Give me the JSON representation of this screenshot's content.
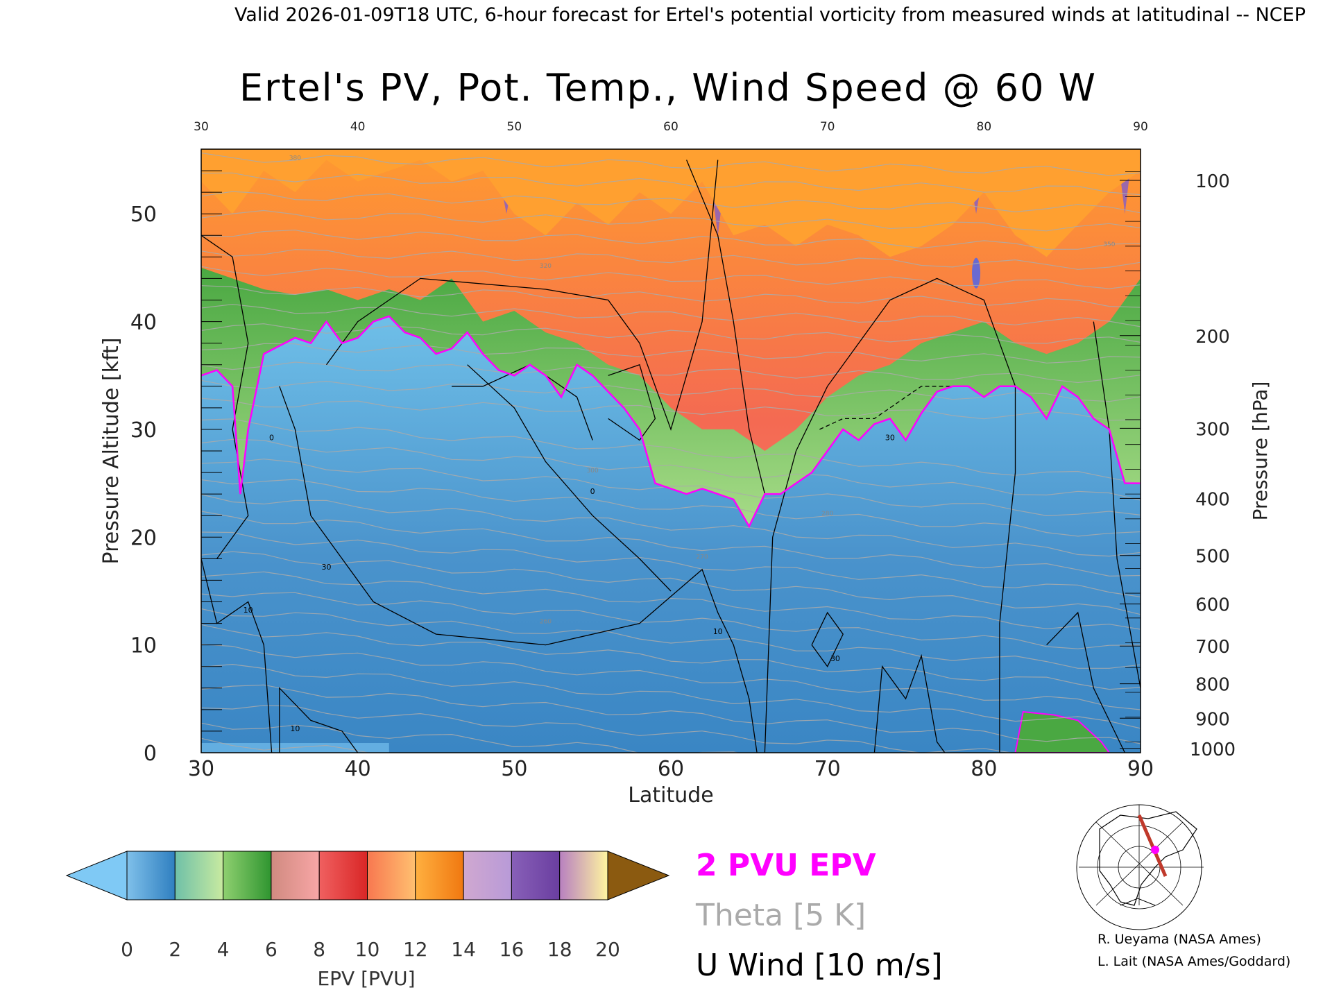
{
  "header": {
    "valid_line": "Valid 2026-01-09T18 UTC, 6-hour forecast for Ertel's potential vorticity from measured winds at latitudinal -- NCEP"
  },
  "chart_data": {
    "type": "heatmap",
    "title": "Ertel's PV, Pot. Temp., Wind Speed @ 60 W",
    "xlabel": "Latitude",
    "ylabel": "Pressure Altitude [kft]",
    "y2label": "Pressure [hPa]",
    "xlim": [
      30,
      90
    ],
    "ylim": [
      0,
      56
    ],
    "x_ticks": [
      30,
      40,
      50,
      60,
      70,
      80,
      90
    ],
    "y_ticks": [
      0,
      10,
      20,
      30,
      40,
      50
    ],
    "pressure_ticks": [
      {
        "label": "100",
        "kft": 53.1
      },
      {
        "label": "200",
        "kft": 38.7
      },
      {
        "label": "300",
        "kft": 30.1
      },
      {
        "label": "400",
        "kft": 23.6
      },
      {
        "label": "500",
        "kft": 18.3
      },
      {
        "label": "600",
        "kft": 13.8
      },
      {
        "label": "700",
        "kft": 9.9
      },
      {
        "label": "800",
        "kft": 6.4
      },
      {
        "label": "900",
        "kft": 3.2
      },
      {
        "label": "1000",
        "kft": 0.4
      }
    ],
    "colorbar": {
      "label": "EPV [PVU]",
      "ticks": [
        0,
        2,
        4,
        6,
        8,
        10,
        12,
        14,
        16,
        18,
        20
      ],
      "under_color": "#7fc9f5",
      "over_color": "#8b5a10",
      "bands": [
        {
          "from": 0,
          "to": 2,
          "colors": [
            "#7fc0ea",
            "#2f7fc0"
          ]
        },
        {
          "from": 2,
          "to": 4,
          "colors": [
            "#6fc0a8",
            "#c8eaa0"
          ]
        },
        {
          "from": 4,
          "to": 6,
          "colors": [
            "#8fd070",
            "#2f9530"
          ]
        },
        {
          "from": 6,
          "to": 8,
          "colors": [
            "#d08a80",
            "#f8a6a6"
          ]
        },
        {
          "from": 8,
          "to": 10,
          "colors": [
            "#f06060",
            "#d92626"
          ]
        },
        {
          "from": 10,
          "to": 12,
          "colors": [
            "#f87850",
            "#ffc070"
          ]
        },
        {
          "from": 12,
          "to": 14,
          "colors": [
            "#ffb040",
            "#f07810"
          ]
        },
        {
          "from": 14,
          "to": 16,
          "colors": [
            "#d0a8d0",
            "#b89ad8"
          ]
        },
        {
          "from": 16,
          "to": 18,
          "colors": [
            "#8860b8",
            "#6a3ea0"
          ]
        },
        {
          "from": 18,
          "to": 20,
          "colors": [
            "#b880c0",
            "#fff5a0"
          ]
        }
      ]
    },
    "contour_labels": {
      "wind": [
        "10",
        "30",
        "0"
      ],
      "theta": [
        "260",
        "270",
        "280",
        "300",
        "320",
        "350",
        "380"
      ]
    },
    "legend": {
      "epv_label": "2 PVU EPV",
      "epv_color": "#ff00ff",
      "theta_label": "Theta [5 K]",
      "theta_color": "#aaaaaa",
      "wind_label": "U Wind [10 m/s]",
      "wind_color": "#000000"
    },
    "tropopause_kft": [
      {
        "lat": 30,
        "kft": 35
      },
      {
        "lat": 31,
        "kft": 35.5
      },
      {
        "lat": 32,
        "kft": 34
      },
      {
        "lat": 32.5,
        "kft": 24
      },
      {
        "lat": 33,
        "kft": 30
      },
      {
        "lat": 34,
        "kft": 37
      },
      {
        "lat": 36,
        "kft": 38.5
      },
      {
        "lat": 37,
        "kft": 38
      },
      {
        "lat": 38,
        "kft": 40
      },
      {
        "lat": 39,
        "kft": 38
      },
      {
        "lat": 40,
        "kft": 38.5
      },
      {
        "lat": 41,
        "kft": 40
      },
      {
        "lat": 42,
        "kft": 40.5
      },
      {
        "lat": 43,
        "kft": 39
      },
      {
        "lat": 44,
        "kft": 38.5
      },
      {
        "lat": 45,
        "kft": 37
      },
      {
        "lat": 46,
        "kft": 37.5
      },
      {
        "lat": 47,
        "kft": 39
      },
      {
        "lat": 48,
        "kft": 37
      },
      {
        "lat": 49,
        "kft": 35.5
      },
      {
        "lat": 50,
        "kft": 35
      },
      {
        "lat": 51,
        "kft": 36
      },
      {
        "lat": 52,
        "kft": 35
      },
      {
        "lat": 53,
        "kft": 33
      },
      {
        "lat": 54,
        "kft": 36
      },
      {
        "lat": 55,
        "kft": 35
      },
      {
        "lat": 56,
        "kft": 33.5
      },
      {
        "lat": 57,
        "kft": 32
      },
      {
        "lat": 58,
        "kft": 30
      },
      {
        "lat": 59,
        "kft": 25
      },
      {
        "lat": 60,
        "kft": 24.5
      },
      {
        "lat": 61,
        "kft": 24
      },
      {
        "lat": 62,
        "kft": 24.5
      },
      {
        "lat": 63,
        "kft": 24
      },
      {
        "lat": 64,
        "kft": 23.5
      },
      {
        "lat": 65,
        "kft": 21
      },
      {
        "lat": 66,
        "kft": 24
      },
      {
        "lat": 67,
        "kft": 24
      },
      {
        "lat": 68,
        "kft": 25
      },
      {
        "lat": 69,
        "kft": 26
      },
      {
        "lat": 70,
        "kft": 28
      },
      {
        "lat": 71,
        "kft": 30
      },
      {
        "lat": 72,
        "kft": 29
      },
      {
        "lat": 73,
        "kft": 30.5
      },
      {
        "lat": 74,
        "kft": 31
      },
      {
        "lat": 75,
        "kft": 29
      },
      {
        "lat": 76,
        "kft": 31.5
      },
      {
        "lat": 77,
        "kft": 33.5
      },
      {
        "lat": 78,
        "kft": 34
      },
      {
        "lat": 79,
        "kft": 34
      },
      {
        "lat": 80,
        "kft": 33
      },
      {
        "lat": 81,
        "kft": 34
      },
      {
        "lat": 82,
        "kft": 34
      },
      {
        "lat": 83,
        "kft": 33
      },
      {
        "lat": 84,
        "kft": 31
      },
      {
        "lat": 85,
        "kft": 34
      },
      {
        "lat": 86,
        "kft": 33
      },
      {
        "lat": 87,
        "kft": 31
      },
      {
        "lat": 88,
        "kft": 30
      },
      {
        "lat": 89,
        "kft": 25
      },
      {
        "lat": 90,
        "kft": 25
      }
    ],
    "green_top_kft": [
      {
        "lat": 30,
        "kft": 45
      },
      {
        "lat": 32,
        "kft": 44
      },
      {
        "lat": 34,
        "kft": 43
      },
      {
        "lat": 36,
        "kft": 42.5
      },
      {
        "lat": 38,
        "kft": 43
      },
      {
        "lat": 40,
        "kft": 42
      },
      {
        "lat": 42,
        "kft": 43
      },
      {
        "lat": 44,
        "kft": 42
      },
      {
        "lat": 46,
        "kft": 44
      },
      {
        "lat": 48,
        "kft": 40
      },
      {
        "lat": 50,
        "kft": 41
      },
      {
        "lat": 52,
        "kft": 39
      },
      {
        "lat": 54,
        "kft": 38
      },
      {
        "lat": 56,
        "kft": 36
      },
      {
        "lat": 58,
        "kft": 35
      },
      {
        "lat": 60,
        "kft": 32
      },
      {
        "lat": 62,
        "kft": 30
      },
      {
        "lat": 64,
        "kft": 30
      },
      {
        "lat": 66,
        "kft": 28
      },
      {
        "lat": 68,
        "kft": 30
      },
      {
        "lat": 70,
        "kft": 33
      },
      {
        "lat": 72,
        "kft": 35
      },
      {
        "lat": 74,
        "kft": 36
      },
      {
        "lat": 76,
        "kft": 38
      },
      {
        "lat": 78,
        "kft": 39
      },
      {
        "lat": 80,
        "kft": 40
      },
      {
        "lat": 82,
        "kft": 38
      },
      {
        "lat": 84,
        "kft": 37
      },
      {
        "lat": 86,
        "kft": 38
      },
      {
        "lat": 88,
        "kft": 40
      },
      {
        "lat": 90,
        "kft": 44
      }
    ],
    "orange_bottom_kft": [
      {
        "lat": 30,
        "kft": 53
      },
      {
        "lat": 32,
        "kft": 50
      },
      {
        "lat": 34,
        "kft": 54
      },
      {
        "lat": 36,
        "kft": 52
      },
      {
        "lat": 38,
        "kft": 55
      },
      {
        "lat": 40,
        "kft": 53
      },
      {
        "lat": 42,
        "kft": 54
      },
      {
        "lat": 44,
        "kft": 55
      },
      {
        "lat": 46,
        "kft": 53
      },
      {
        "lat": 48,
        "kft": 54
      },
      {
        "lat": 50,
        "kft": 50
      },
      {
        "lat": 52,
        "kft": 48
      },
      {
        "lat": 54,
        "kft": 51
      },
      {
        "lat": 56,
        "kft": 49
      },
      {
        "lat": 58,
        "kft": 52
      },
      {
        "lat": 60,
        "kft": 50
      },
      {
        "lat": 62,
        "kft": 53
      },
      {
        "lat": 64,
        "kft": 48
      },
      {
        "lat": 66,
        "kft": 49
      },
      {
        "lat": 68,
        "kft": 47
      },
      {
        "lat": 70,
        "kft": 49
      },
      {
        "lat": 72,
        "kft": 48
      },
      {
        "lat": 74,
        "kft": 46
      },
      {
        "lat": 76,
        "kft": 47
      },
      {
        "lat": 78,
        "kft": 49
      },
      {
        "lat": 80,
        "kft": 52
      },
      {
        "lat": 82,
        "kft": 48
      },
      {
        "lat": 84,
        "kft": 46
      },
      {
        "lat": 86,
        "kft": 49
      },
      {
        "lat": 88,
        "kft": 52
      },
      {
        "lat": 90,
        "kft": 54
      }
    ],
    "map_inset": {
      "marker_color": "#ff00ff",
      "section_color": "#c0392b"
    }
  },
  "credits": {
    "line1": "R. Ueyama (NASA Ames)",
    "line2": "L. Lait (NASA Ames/Goddard)"
  }
}
